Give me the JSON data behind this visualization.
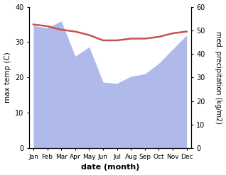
{
  "months": [
    "Jan",
    "Feb",
    "Mar",
    "Apr",
    "May",
    "Jun",
    "Jul",
    "Aug",
    "Sep",
    "Oct",
    "Nov",
    "Dec"
  ],
  "month_indices": [
    0,
    1,
    2,
    3,
    4,
    5,
    6,
    7,
    8,
    9,
    10,
    11
  ],
  "max_temp": [
    35.0,
    34.5,
    33.5,
    33.0,
    32.0,
    30.5,
    30.5,
    31.0,
    31.0,
    31.5,
    32.5,
    33.0
  ],
  "precipitation": [
    52.0,
    51.0,
    54.0,
    39.0,
    43.0,
    28.0,
    27.5,
    30.5,
    31.5,
    36.0,
    42.0,
    48.0
  ],
  "temp_color": "#c8524a",
  "precip_color": "#b0baea",
  "temp_ylim": [
    0,
    40
  ],
  "precip_ylim": [
    0,
    60
  ],
  "xlabel": "date (month)",
  "ylabel_left": "max temp (C)",
  "ylabel_right": "med. precipitation (kg/m2)",
  "bg_color": "#ffffff",
  "fig_width": 3.18,
  "fig_height": 2.47,
  "dpi": 100
}
